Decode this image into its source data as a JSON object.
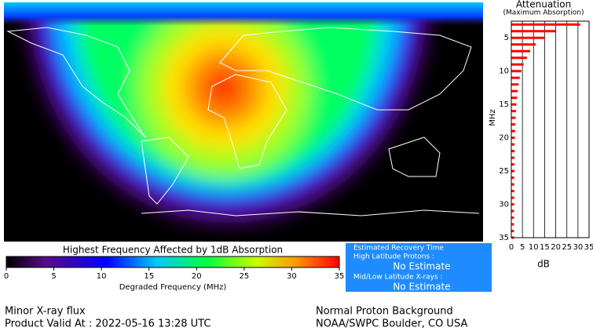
{
  "chart_data": [
    {
      "type": "colorbar",
      "title": "Highest Frequency Affected by 1dB Absorption",
      "xlabel": "Degraded Frequency (MHz)",
      "xlim": [
        0,
        35
      ],
      "xticks": [
        0,
        5,
        10,
        15,
        20,
        25,
        30,
        35
      ]
    },
    {
      "type": "hbar",
      "title": "Attenuation",
      "subtitle": "(Maximum Absorption)",
      "ylabel": "MHz",
      "xlabel": "dB",
      "color": "#ff0000",
      "grid": true,
      "y_inverted": true,
      "y": [
        3,
        4,
        5,
        6,
        7,
        8,
        9,
        10,
        11,
        12,
        13,
        14,
        15,
        16,
        17,
        18,
        19,
        20,
        21,
        22,
        23,
        24,
        25,
        26,
        27,
        28,
        29,
        30,
        31,
        32,
        33,
        34,
        35
      ],
      "values": [
        31,
        20,
        15,
        11,
        8.5,
        7,
        5.5,
        4.5,
        3.8,
        3.3,
        2.9,
        2.6,
        2.3,
        2.1,
        1.9,
        1.8,
        1.7,
        1.6,
        1.5,
        1.5,
        1.4,
        1.4,
        1.4,
        1.3,
        1.3,
        1.3,
        1.3,
        1.2,
        1.2,
        1.2,
        1.2,
        1.2,
        1.2
      ],
      "xlim": [
        0,
        35
      ],
      "xticks": [
        0,
        5,
        10,
        15,
        20,
        25,
        30,
        35
      ],
      "ylim": [
        2.5,
        35
      ],
      "yticks": [
        5,
        10,
        15,
        20,
        25,
        30,
        35
      ]
    }
  ],
  "recovery": {
    "title": "Estimated Recovery Time",
    "items": [
      {
        "label": "High Latitude Protons :",
        "value": "No Estimate"
      },
      {
        "label": "Mid/Low Latitude X-rays :",
        "value": "No Estimate"
      }
    ]
  },
  "footer": {
    "left": [
      "Minor X-ray flux",
      "Product Valid At : 2022-05-16 13:28 UTC"
    ],
    "right": [
      "Normal Proton Background",
      "NOAA/SWPC Boulder, CO USA"
    ]
  }
}
